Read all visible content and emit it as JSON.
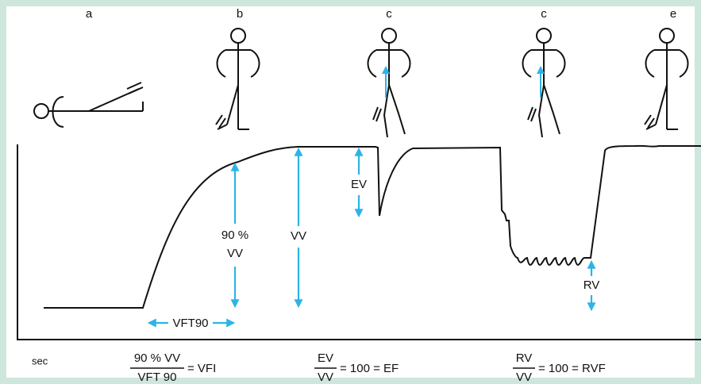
{
  "panel_labels": [
    "a",
    "b",
    "c",
    "c",
    "e"
  ],
  "annotations": {
    "ev": "EV",
    "ninety_percent": "90 %",
    "ninety_vv": "VV",
    "vv": "VV",
    "rv": "RV",
    "vft90": "VFT90"
  },
  "time_unit": "sec",
  "formulas": [
    {
      "numerator": "90 % VV",
      "denominator": "VFT 90",
      "result": "= VFI"
    },
    {
      "numerator": "EV",
      "denominator": "VV",
      "result": "= 100 = EF"
    },
    {
      "numerator": "RV",
      "denominator": "VV",
      "result": "= 100 = RVF"
    }
  ]
}
